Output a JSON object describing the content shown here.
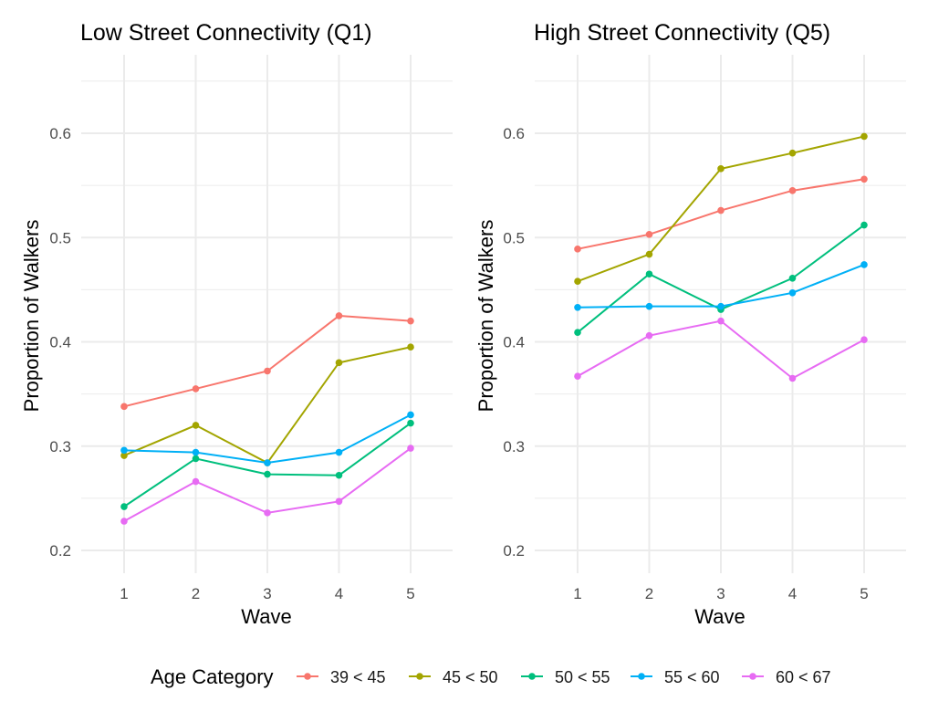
{
  "chart_data": [
    {
      "type": "line",
      "title": "Low Street Connectivity (Q1)",
      "xlabel": "Wave",
      "ylabel": "Proportion of Walkers",
      "x": [
        1,
        2,
        3,
        4,
        5
      ],
      "xticks": [
        "1",
        "2",
        "3",
        "4",
        "5"
      ],
      "ylim": [
        0.175,
        0.65
      ],
      "yticks": [
        "0.2",
        "0.3",
        "0.4",
        "0.5",
        "0.6"
      ],
      "grid": true,
      "series": [
        {
          "name": "39 < 45",
          "color": "#F8766D",
          "values": [
            0.338,
            0.355,
            0.372,
            0.425,
            0.42
          ]
        },
        {
          "name": "45 < 50",
          "color": "#A3A500",
          "values": [
            0.291,
            0.32,
            0.284,
            0.38,
            0.395
          ]
        },
        {
          "name": "50 < 55",
          "color": "#00BF7D",
          "values": [
            0.242,
            0.288,
            0.273,
            0.272,
            0.322
          ]
        },
        {
          "name": "55 < 60",
          "color": "#00B0F6",
          "values": [
            0.296,
            0.294,
            0.284,
            0.294,
            0.33
          ]
        },
        {
          "name": "60 < 67",
          "color": "#E76BF3",
          "values": [
            0.228,
            0.266,
            0.236,
            0.247,
            0.298
          ]
        }
      ]
    },
    {
      "type": "line",
      "title": "High Street Connectivity (Q5)",
      "xlabel": "Wave",
      "ylabel": "Proportion of Walkers",
      "x": [
        1,
        2,
        3,
        4,
        5
      ],
      "xticks": [
        "1",
        "2",
        "3",
        "4",
        "5"
      ],
      "ylim": [
        0.175,
        0.65
      ],
      "yticks": [
        "0.2",
        "0.3",
        "0.4",
        "0.5",
        "0.6"
      ],
      "grid": true,
      "series": [
        {
          "name": "39 < 45",
          "color": "#F8766D",
          "values": [
            0.489,
            0.503,
            0.526,
            0.545,
            0.556
          ]
        },
        {
          "name": "45 < 50",
          "color": "#A3A500",
          "values": [
            0.458,
            0.484,
            0.566,
            0.581,
            0.597
          ]
        },
        {
          "name": "50 < 55",
          "color": "#00BF7D",
          "values": [
            0.409,
            0.465,
            0.431,
            0.461,
            0.512
          ]
        },
        {
          "name": "55 < 60",
          "color": "#00B0F6",
          "values": [
            0.433,
            0.434,
            0.434,
            0.447,
            0.474
          ]
        },
        {
          "name": "60 < 67",
          "color": "#E76BF3",
          "values": [
            0.367,
            0.406,
            0.42,
            0.365,
            0.402
          ]
        }
      ]
    }
  ],
  "legend": {
    "title": "Age Category",
    "placement": "bottom",
    "entries": [
      {
        "label": "39 < 45",
        "color": "#F8766D"
      },
      {
        "label": "45 < 50",
        "color": "#A3A500"
      },
      {
        "label": "50 < 55",
        "color": "#00BF7D"
      },
      {
        "label": "55 < 60",
        "color": "#00B0F6"
      },
      {
        "label": "60 < 67",
        "color": "#E76BF3"
      }
    ]
  }
}
